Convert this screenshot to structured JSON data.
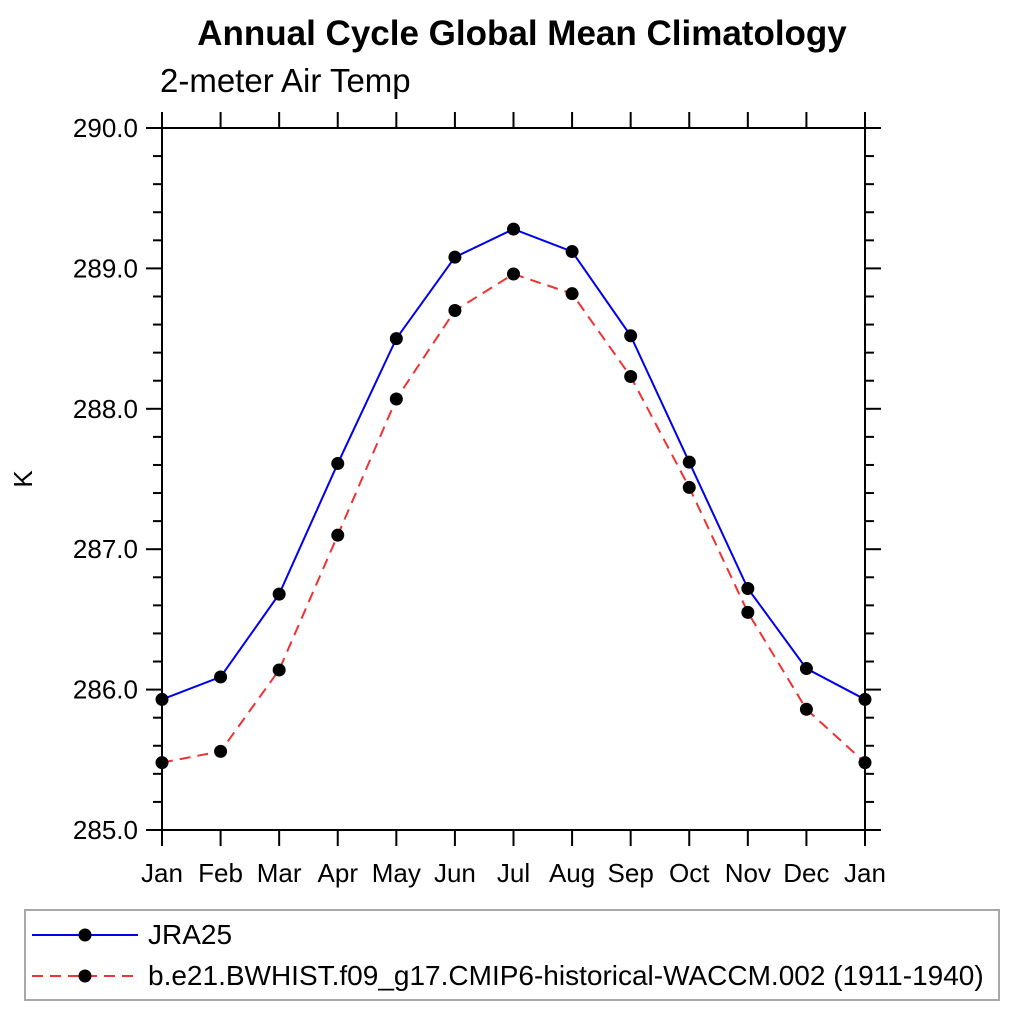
{
  "header": {
    "title": "Annual Cycle Global Mean Climatology",
    "subtitle": "2-meter Air Temp"
  },
  "chart_data": {
    "type": "line",
    "title": "Annual Cycle Global Mean Climatology",
    "subtitle": "2-meter Air Temp",
    "xlabel": "",
    "ylabel": "K",
    "x_tick_labels": [
      "Jan",
      "Feb",
      "Mar",
      "Apr",
      "May",
      "Jun",
      "Jul",
      "Aug",
      "Sep",
      "Oct",
      "Nov",
      "Dec",
      "Jan"
    ],
    "ylim": [
      285.0,
      290.0
    ],
    "y_major_step": 1.0,
    "y_minor_step": 0.2,
    "grid": false,
    "legend_position": "bottom-left-box",
    "axis_color": "#000000",
    "marker_radius_px": 6.5,
    "series": [
      {
        "name": "JRA25",
        "color": "#0000ee",
        "style": "solid",
        "marker": "circle",
        "marker_color": "#000000",
        "values": [
          285.93,
          286.09,
          286.68,
          287.61,
          288.5,
          289.08,
          289.28,
          289.12,
          288.52,
          287.62,
          286.72,
          286.15,
          285.93
        ]
      },
      {
        "name": "b.e21.BWHIST.f09_g17.CMIP6-historical-WACCM.002 (1911-1940)",
        "color": "#ee3333",
        "style": "dashed",
        "marker": "circle",
        "marker_color": "#000000",
        "values": [
          285.48,
          285.56,
          286.14,
          287.1,
          288.07,
          288.7,
          288.96,
          288.82,
          288.23,
          287.44,
          286.55,
          285.86,
          285.48
        ]
      }
    ]
  },
  "legend": {
    "entries": [
      {
        "label": "JRA25"
      },
      {
        "label": "b.e21.BWHIST.f09_g17.CMIP6-historical-WACCM.002 (1911-1940)"
      }
    ]
  }
}
